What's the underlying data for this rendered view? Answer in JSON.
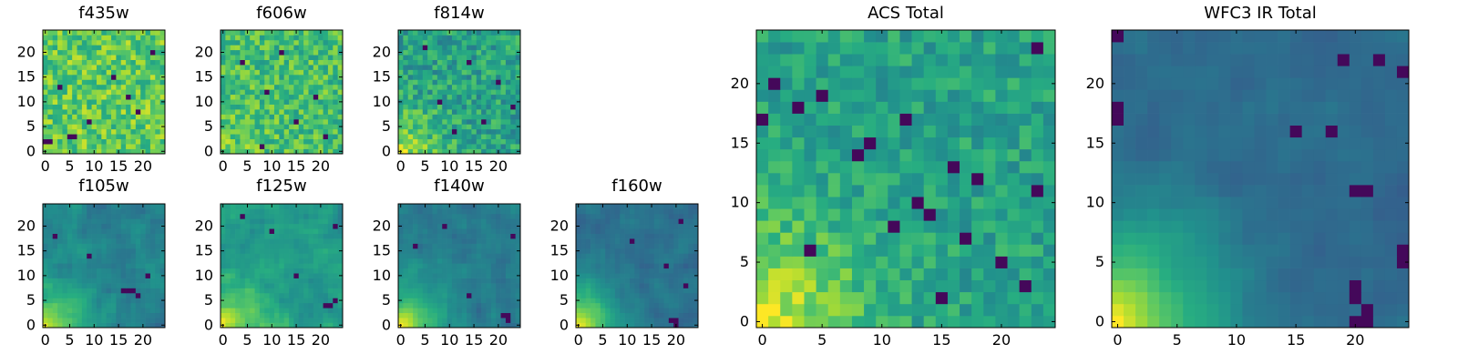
{
  "figure": {
    "description_order": [
      "f435w",
      "f606w",
      "f814w",
      "f105w",
      "f125w",
      "f140w",
      "f160w",
      "ACS Total",
      "WFC3 IR Total"
    ]
  },
  "chart_data": [
    {
      "type": "heatmap",
      "title": "f435w",
      "grid_size": 25,
      "colormap": "viridis",
      "x_ticks": [
        0,
        5,
        10,
        15,
        20
      ],
      "y_ticks": [
        0,
        5,
        10,
        15,
        20
      ],
      "xlim": [
        -0.5,
        24.5
      ],
      "ylim": [
        -0.5,
        24.5
      ],
      "pattern": "noisy",
      "seed": 11,
      "base_level": 0.76,
      "corner_gradient": 0.0,
      "noise_amp": 0.34,
      "dark_cells": [
        [
          5,
          3
        ],
        [
          6,
          3
        ],
        [
          0,
          2
        ],
        [
          1,
          2
        ],
        [
          9,
          6
        ],
        [
          14,
          15
        ],
        [
          17,
          11
        ],
        [
          22,
          20
        ],
        [
          19,
          8
        ],
        [
          3,
          13
        ]
      ]
    },
    {
      "type": "heatmap",
      "title": "f606w",
      "grid_size": 25,
      "colormap": "viridis",
      "x_ticks": [
        0,
        5,
        10,
        15,
        20
      ],
      "y_ticks": [
        0,
        5,
        10,
        15,
        20
      ],
      "xlim": [
        -0.5,
        24.5
      ],
      "ylim": [
        -0.5,
        24.5
      ],
      "pattern": "noisy",
      "seed": 23,
      "base_level": 0.7,
      "corner_gradient": 0.12,
      "noise_amp": 0.32,
      "dark_cells": [
        [
          8,
          1
        ],
        [
          9,
          12
        ],
        [
          4,
          18
        ],
        [
          15,
          6
        ],
        [
          19,
          11
        ],
        [
          12,
          20
        ],
        [
          21,
          3
        ]
      ]
    },
    {
      "type": "heatmap",
      "title": "f814w",
      "grid_size": 25,
      "colormap": "viridis",
      "x_ticks": [
        0,
        5,
        10,
        15,
        20
      ],
      "y_ticks": [
        0,
        5,
        10,
        15,
        20
      ],
      "xlim": [
        -0.5,
        24.5
      ],
      "ylim": [
        -0.5,
        24.5
      ],
      "pattern": "noisy",
      "seed": 37,
      "base_level": 0.58,
      "corner_gradient": 0.35,
      "noise_amp": 0.32,
      "dark_cells": [
        [
          17,
          6
        ],
        [
          11,
          4
        ],
        [
          20,
          14
        ],
        [
          5,
          21
        ],
        [
          14,
          18
        ],
        [
          23,
          9
        ],
        [
          8,
          10
        ]
      ]
    },
    {
      "type": "heatmap",
      "title": "f105w",
      "grid_size": 25,
      "colormap": "viridis",
      "x_ticks": [
        0,
        5,
        10,
        15,
        20
      ],
      "y_ticks": [
        0,
        5,
        10,
        15,
        20
      ],
      "xlim": [
        -0.5,
        24.5
      ],
      "ylim": [
        -0.5,
        24.5
      ],
      "pattern": "smooth",
      "seed": 41,
      "base_level": 0.45,
      "corner_gradient": 0.5,
      "noise_amp": 0.22,
      "dark_cells": [
        [
          16,
          7
        ],
        [
          17,
          7
        ],
        [
          18,
          7
        ],
        [
          19,
          6
        ],
        [
          21,
          10
        ],
        [
          9,
          14
        ],
        [
          2,
          18
        ]
      ]
    },
    {
      "type": "heatmap",
      "title": "f125w",
      "grid_size": 25,
      "colormap": "viridis",
      "x_ticks": [
        0,
        5,
        10,
        15,
        20
      ],
      "y_ticks": [
        0,
        5,
        10,
        15,
        20
      ],
      "xlim": [
        -0.5,
        24.5
      ],
      "ylim": [
        -0.5,
        24.5
      ],
      "pattern": "smooth",
      "seed": 53,
      "base_level": 0.55,
      "corner_gradient": 0.42,
      "noise_amp": 0.24,
      "dark_cells": [
        [
          21,
          4
        ],
        [
          22,
          4
        ],
        [
          23,
          5
        ],
        [
          15,
          10
        ],
        [
          10,
          19
        ],
        [
          23,
          20
        ],
        [
          4,
          22
        ]
      ]
    },
    {
      "type": "heatmap",
      "title": "f140w",
      "grid_size": 25,
      "colormap": "viridis",
      "x_ticks": [
        0,
        5,
        10,
        15,
        20
      ],
      "y_ticks": [
        0,
        5,
        10,
        15,
        20
      ],
      "xlim": [
        -0.5,
        24.5
      ],
      "ylim": [
        -0.5,
        24.5
      ],
      "pattern": "smooth",
      "seed": 67,
      "base_level": 0.42,
      "corner_gradient": 0.55,
      "noise_amp": 0.18,
      "dark_cells": [
        [
          21,
          2
        ],
        [
          22,
          2
        ],
        [
          22,
          1
        ],
        [
          23,
          18
        ],
        [
          14,
          6
        ],
        [
          9,
          20
        ],
        [
          3,
          16
        ]
      ]
    },
    {
      "type": "heatmap",
      "title": "f160w",
      "grid_size": 25,
      "colormap": "viridis",
      "x_ticks": [
        0,
        5,
        10,
        15,
        20
      ],
      "y_ticks": [
        0,
        5,
        10,
        15,
        20
      ],
      "xlim": [
        -0.5,
        24.5
      ],
      "ylim": [
        -0.5,
        24.5
      ],
      "pattern": "smooth",
      "seed": 79,
      "base_level": 0.38,
      "corner_gradient": 0.62,
      "noise_amp": 0.16,
      "dark_cells": [
        [
          19,
          1
        ],
        [
          20,
          1
        ],
        [
          20,
          0
        ],
        [
          21,
          21
        ],
        [
          18,
          12
        ],
        [
          22,
          8
        ],
        [
          11,
          17
        ]
      ]
    },
    {
      "type": "heatmap",
      "title": "ACS Total",
      "grid_size": 25,
      "colormap": "viridis",
      "x_ticks": [
        0,
        5,
        10,
        15,
        20
      ],
      "y_ticks": [
        0,
        5,
        10,
        15,
        20
      ],
      "xlim": [
        -0.5,
        24.5
      ],
      "ylim": [
        -0.5,
        24.5
      ],
      "pattern": "noisy",
      "seed": 97,
      "base_level": 0.58,
      "corner_gradient": 0.42,
      "noise_amp": 0.24,
      "dark_cells": [
        [
          1,
          20
        ],
        [
          0,
          17
        ],
        [
          3,
          18
        ],
        [
          5,
          19
        ],
        [
          9,
          15
        ],
        [
          13,
          10
        ],
        [
          14,
          9
        ],
        [
          16,
          13
        ],
        [
          17,
          7
        ],
        [
          18,
          12
        ],
        [
          23,
          23
        ],
        [
          23,
          11
        ],
        [
          4,
          6
        ],
        [
          20,
          5
        ],
        [
          11,
          8
        ],
        [
          15,
          2
        ],
        [
          22,
          3
        ],
        [
          8,
          14
        ],
        [
          12,
          17
        ]
      ]
    },
    {
      "type": "heatmap",
      "title": "WFC3 IR Total",
      "grid_size": 25,
      "colormap": "viridis",
      "x_ticks": [
        0,
        5,
        10,
        15,
        20
      ],
      "y_ticks": [
        0,
        5,
        10,
        15,
        20
      ],
      "xlim": [
        -0.5,
        24.5
      ],
      "ylim": [
        -0.5,
        24.5
      ],
      "pattern": "smooth",
      "seed": 113,
      "base_level": 0.36,
      "corner_gradient": 0.62,
      "noise_amp": 0.12,
      "dark_cells": [
        [
          0,
          24
        ],
        [
          0,
          18
        ],
        [
          0,
          17
        ],
        [
          20,
          3
        ],
        [
          20,
          2
        ],
        [
          21,
          1
        ],
        [
          20,
          0
        ],
        [
          21,
          0
        ],
        [
          20,
          11
        ],
        [
          21,
          11
        ],
        [
          24,
          5
        ],
        [
          24,
          6
        ],
        [
          19,
          22
        ],
        [
          22,
          22
        ],
        [
          24,
          21
        ],
        [
          15,
          16
        ],
        [
          18,
          16
        ]
      ]
    }
  ]
}
